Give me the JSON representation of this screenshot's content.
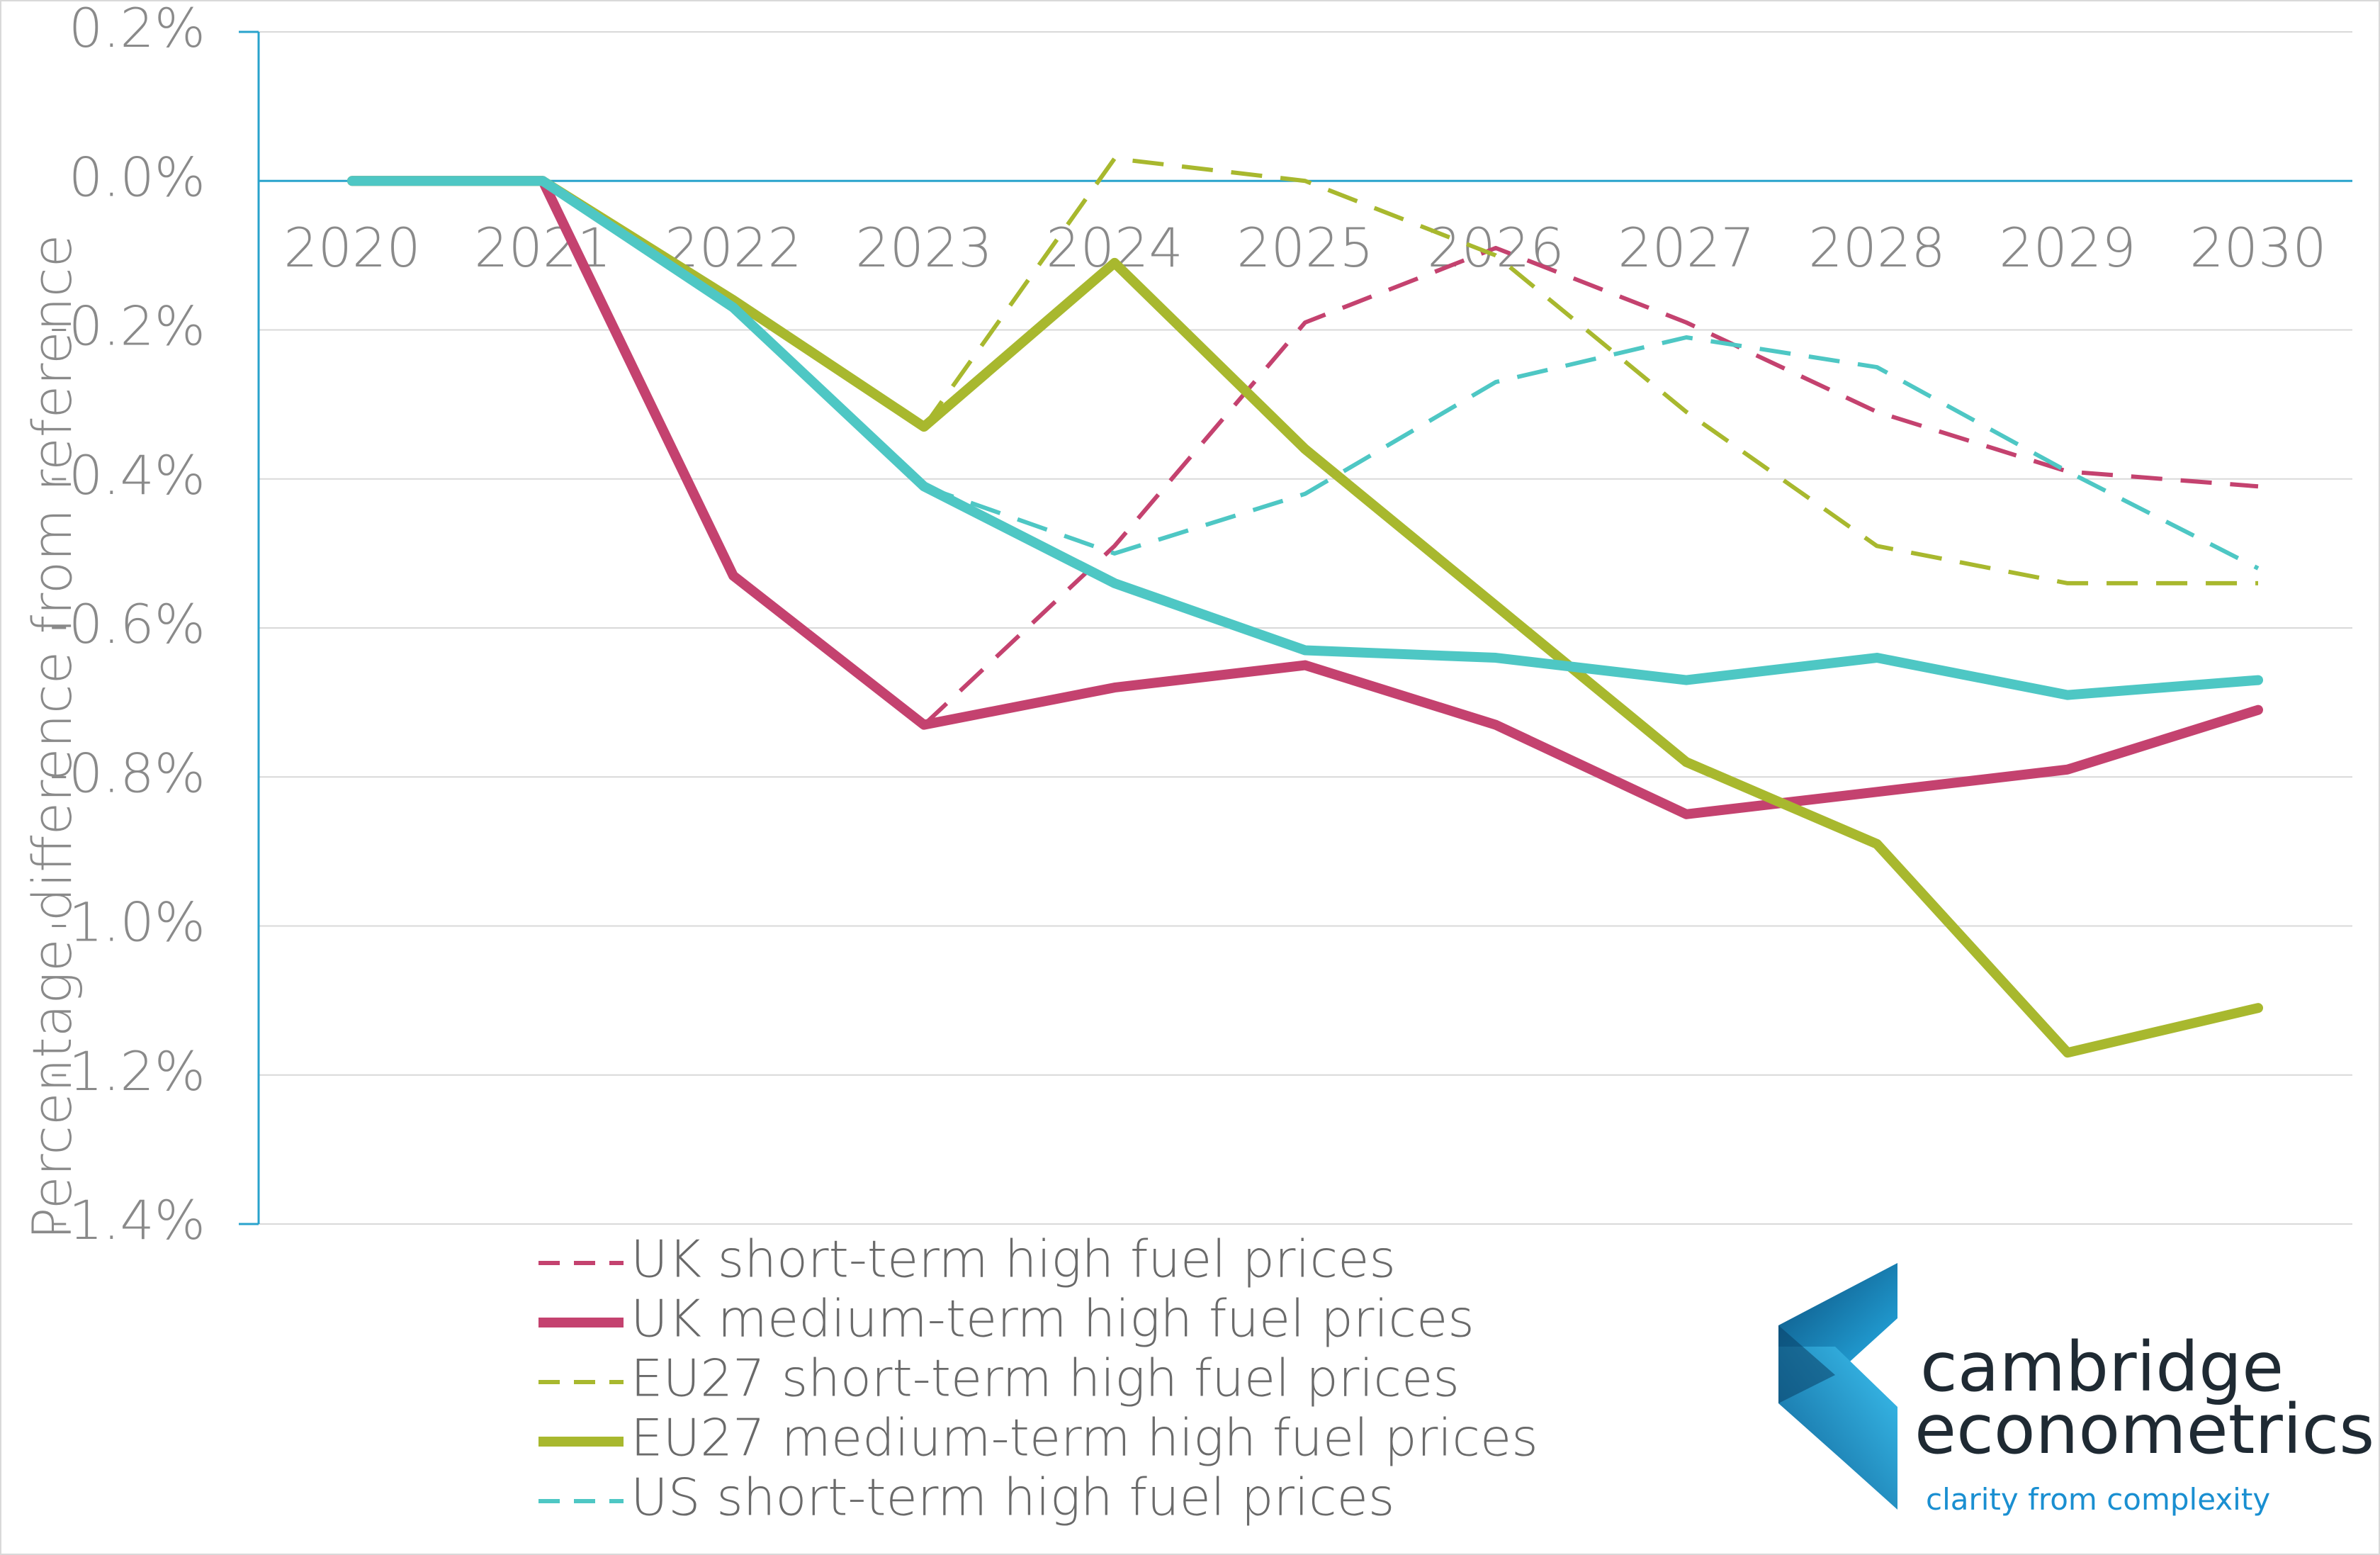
{
  "chart_data": {
    "type": "line",
    "categories": [
      "2020",
      "2021",
      "2022",
      "2023",
      "2024",
      "2025",
      "2026",
      "2027",
      "2028",
      "2029",
      "2030"
    ],
    "ylabel": "Percentage difference from reference",
    "ylim": [
      -1.4,
      0.2
    ],
    "yticks": [
      0.2,
      0.0,
      -0.2,
      -0.4,
      -0.6,
      -0.8,
      -1.0,
      -1.2,
      -1.4
    ],
    "ytick_labels": [
      "0.2%",
      "0.0%",
      "-0.2%",
      "-0.4%",
      "-0.6%",
      "-0.8%",
      "-1.0%",
      "-1.2%",
      "-1.4%"
    ],
    "grid": true,
    "legend_position": "bottom-left",
    "series": [
      {
        "name": "UK short-term high fuel prices",
        "color": "#c4426f",
        "style": "dashed",
        "weight": "thin",
        "values": [
          null,
          null,
          null,
          -0.73,
          -0.49,
          -0.19,
          -0.09,
          -0.19,
          -0.31,
          -0.39,
          -0.41
        ]
      },
      {
        "name": "UK medium-term high fuel prices",
        "color": "#c4426f",
        "style": "solid",
        "weight": "thick",
        "values": [
          0.0,
          0.0,
          -0.53,
          -0.73,
          -0.68,
          -0.65,
          -0.73,
          -0.85,
          -0.82,
          -0.79,
          -0.71
        ]
      },
      {
        "name": "EU27 short-term high fuel prices",
        "color": "#a8b82e",
        "style": "dashed",
        "weight": "thin",
        "values": [
          null,
          null,
          null,
          -0.33,
          0.03,
          0.0,
          -0.1,
          -0.31,
          -0.49,
          -0.54,
          -0.54
        ]
      },
      {
        "name": "EU27 medium-term high fuel prices",
        "color": "#a8b82e",
        "style": "solid",
        "weight": "thick",
        "values": [
          0.0,
          0.0,
          -0.16,
          -0.33,
          -0.11,
          -0.36,
          -0.57,
          -0.78,
          -0.89,
          -1.17,
          -1.11
        ]
      },
      {
        "name": "US short-term high fuel prices",
        "color": "#4ec7c4",
        "style": "dashed",
        "weight": "thin",
        "values": [
          null,
          null,
          null,
          -0.41,
          -0.5,
          -0.42,
          -0.27,
          -0.21,
          -0.25,
          -0.39,
          -0.52
        ]
      },
      {
        "name": "",
        "color": "#4ec7c4",
        "style": "solid",
        "weight": "thick",
        "values": [
          0.0,
          0.0,
          -0.17,
          -0.41,
          -0.54,
          -0.63,
          -0.64,
          -0.67,
          -0.64,
          -0.69,
          -0.67
        ]
      }
    ]
  },
  "logo": {
    "line1": "cambridge",
    "line2": "econometrics",
    "tagline": "clarity from complexity"
  },
  "colors": {
    "axis": "#29a3cc",
    "grid": "#d9d9d9",
    "logo_dark": "#1a5a8a",
    "logo_light": "#22a8e0"
  }
}
